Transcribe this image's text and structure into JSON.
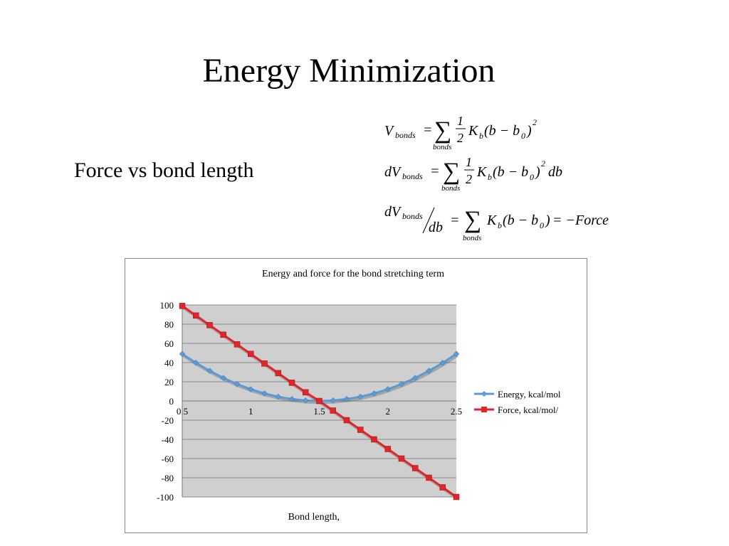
{
  "slide": {
    "title": "Energy Minimization",
    "subtitle": "Force vs bond length"
  },
  "equations": {
    "eq1": {
      "lhs": "V",
      "lhs_sub": "bonds",
      "sum_sub": "bonds",
      "frac_num": "1",
      "frac_den": "2",
      "k": "K",
      "k_sub": "b",
      "body": "(b − b",
      "b0_sub": "0",
      "close": ")",
      "exp": "2"
    },
    "eq2": {
      "lhs": "dV",
      "lhs_sub": "bonds",
      "sum_sub": "bonds",
      "frac_num": "1",
      "frac_den": "2",
      "k": "K",
      "k_sub": "b",
      "body": "(b − b",
      "b0_sub": "0",
      "close": ")",
      "exp": "2",
      "tail": "db"
    },
    "eq3": {
      "lhs": "dV",
      "lhs_sub": "bonds",
      "den": "db",
      "sum_sub": "bonds",
      "k": "K",
      "k_sub": "b",
      "body": "(b − b",
      "b0_sub": "0",
      "close": ")",
      "tail": "= −Force"
    }
  },
  "chart_data": {
    "type": "line",
    "title": "Energy and force for the bond stretching term",
    "xlabel": "Bond length, \u0000",
    "ylabel": "",
    "xlim": [
      0.5,
      2.5
    ],
    "ylim": [
      -100,
      100
    ],
    "xticks": [
      "0.5",
      "1",
      "1.5",
      "2",
      "2.5"
    ],
    "yticks": [
      "100",
      "80",
      "60",
      "40",
      "20",
      "0",
      "-20",
      "-40",
      "-60",
      "-80",
      "-100"
    ],
    "grid": true,
    "legend": "right",
    "x": [
      0.5,
      0.6,
      0.7,
      0.8,
      0.9,
      1.0,
      1.1,
      1.2,
      1.3,
      1.4,
      1.5,
      1.6,
      1.7,
      1.8,
      1.9,
      2.0,
      2.1,
      2.2,
      2.3,
      2.4,
      2.5
    ],
    "series": [
      {
        "name": "Energy, kcal/mol",
        "color": "#5b9bd5",
        "marker": "diamond",
        "values": [
          49,
          39.7,
          31.4,
          24,
          17.6,
          12.2,
          7.8,
          4.4,
          2,
          0.5,
          0,
          0.5,
          2,
          4.4,
          7.8,
          12.2,
          17.6,
          24,
          31.4,
          39.7,
          49
        ]
      },
      {
        "name": "Force, kcal/mol/\u0000",
        "color": "#e0262b",
        "marker": "square",
        "values": [
          99,
          89,
          79,
          69,
          59,
          49,
          39,
          29,
          19,
          9,
          0,
          -10,
          -20,
          -30,
          -40,
          -50,
          -60,
          -70,
          -80,
          -90,
          -100
        ]
      }
    ]
  }
}
